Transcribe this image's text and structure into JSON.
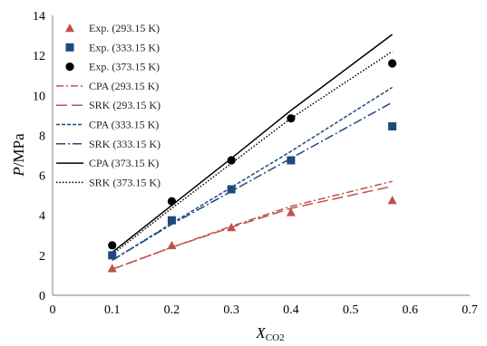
{
  "chart_data": {
    "type": "scatter",
    "title": "",
    "xlabel": {
      "main": "X",
      "sub": "CO2"
    },
    "ylabel": {
      "main": "P",
      "rest": "/MPa"
    },
    "xlim": [
      0,
      0.7
    ],
    "ylim": [
      0,
      14
    ],
    "xticks": [
      "0",
      "0.1",
      "0.2",
      "0.3",
      "0.4",
      "0.5",
      "0.6",
      "0.7"
    ],
    "yticks": [
      "0",
      "2",
      "4",
      "6",
      "8",
      "10",
      "12",
      "14"
    ],
    "grid": false,
    "legend_position": "top-left",
    "series": [
      {
        "name": "Exp. (293.15 K)",
        "kind": "marker",
        "marker": "triangle",
        "color": "#C0504D",
        "x": [
          0.1,
          0.2,
          0.3,
          0.4,
          0.57
        ],
        "y": [
          1.35,
          2.5,
          3.4,
          4.15,
          4.75
        ]
      },
      {
        "name": "Exp. (333.15 K)",
        "kind": "marker",
        "marker": "square",
        "color": "#1F497D",
        "x": [
          0.1,
          0.2,
          0.3,
          0.4,
          0.57
        ],
        "y": [
          2.0,
          3.75,
          5.3,
          6.75,
          8.45
        ]
      },
      {
        "name": "Exp. (373.15 K)",
        "kind": "marker",
        "marker": "circle",
        "color": "#000000",
        "x": [
          0.1,
          0.2,
          0.3,
          0.4,
          0.57
        ],
        "y": [
          2.5,
          4.7,
          6.75,
          8.85,
          11.6
        ]
      },
      {
        "name": "CPA (293.15 K)",
        "kind": "line",
        "dash": "8,3,2,3",
        "color": "#C0504D",
        "x": [
          0.1,
          0.2,
          0.3,
          0.4,
          0.57
        ],
        "y": [
          1.3,
          2.4,
          3.45,
          4.45,
          5.7
        ]
      },
      {
        "name": "SRK (293.15 K)",
        "kind": "line",
        "dash": "12,5",
        "color": "#C0504D",
        "x": [
          0.1,
          0.2,
          0.3,
          0.4,
          0.57
        ],
        "y": [
          1.3,
          2.4,
          3.4,
          4.35,
          5.45
        ]
      },
      {
        "name": "CPA (333.15 K)",
        "kind": "line",
        "dash": "4,2",
        "color": "#1F497D",
        "x": [
          0.1,
          0.2,
          0.3,
          0.4,
          0.57
        ],
        "y": [
          1.75,
          3.6,
          5.4,
          7.2,
          10.4
        ]
      },
      {
        "name": "SRK (333.15 K)",
        "kind": "line",
        "dash": "10,3,2,3",
        "color": "#1F497D",
        "x": [
          0.1,
          0.2,
          0.3,
          0.4,
          0.57
        ],
        "y": [
          1.75,
          3.55,
          5.2,
          6.85,
          9.65
        ]
      },
      {
        "name": "CPA (373.15 K)",
        "kind": "line",
        "dash": "",
        "color": "#000000",
        "x": [
          0.1,
          0.2,
          0.3,
          0.4,
          0.57
        ],
        "y": [
          2.15,
          4.5,
          6.85,
          9.25,
          13.05
        ]
      },
      {
        "name": "SRK (373.15 K)",
        "kind": "line",
        "dash": "1.5,2",
        "color": "#000000",
        "x": [
          0.1,
          0.2,
          0.3,
          0.4,
          0.57
        ],
        "y": [
          2.05,
          4.35,
          6.6,
          8.85,
          12.2
        ]
      }
    ]
  }
}
